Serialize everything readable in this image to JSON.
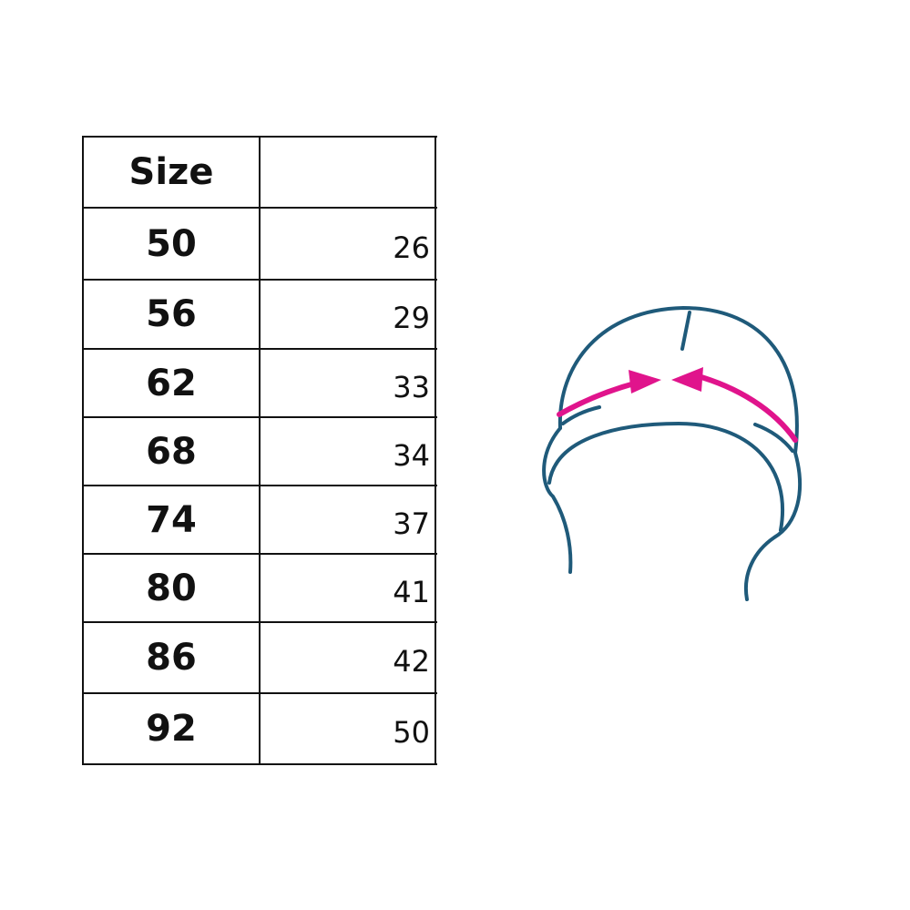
{
  "table": {
    "header": {
      "size_label": "Size",
      "value_label": ""
    },
    "rows": [
      {
        "size": "50",
        "value": "26"
      },
      {
        "size": "56",
        "value": "29"
      },
      {
        "size": "62",
        "value": "33"
      },
      {
        "size": "68",
        "value": "34"
      },
      {
        "size": "74",
        "value": "37"
      },
      {
        "size": "80",
        "value": "41"
      },
      {
        "size": "86",
        "value": "42"
      },
      {
        "size": "92",
        "value": "50"
      }
    ]
  },
  "illustration": {
    "subject": "hat-icon",
    "line_color": "#1f5a7a",
    "measure_color": "#e0148c"
  }
}
